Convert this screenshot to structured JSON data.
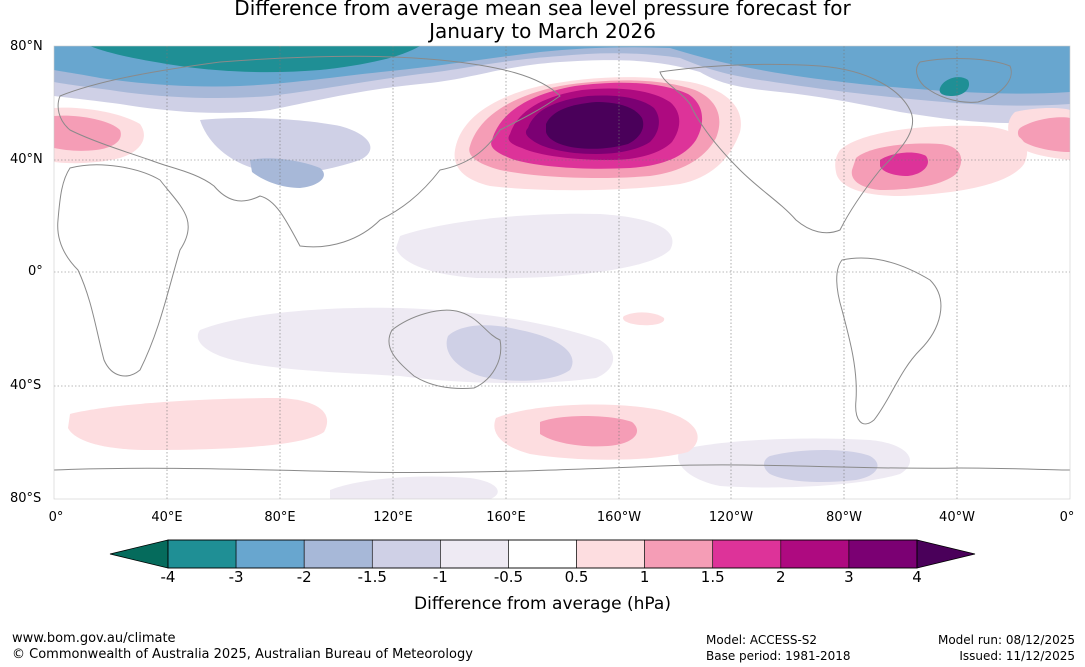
{
  "title_line1": "Difference from average mean sea level pressure forecast for",
  "title_line2": "January to March 2026",
  "map": {
    "lat_labels": [
      "80°N",
      "40°N",
      "0°",
      "40°S",
      "80°S"
    ],
    "lon_labels": [
      "0°",
      "40°E",
      "80°E",
      "120°E",
      "160°E",
      "160°W",
      "120°W",
      "80°W",
      "40°W",
      "0°"
    ]
  },
  "colorbar": {
    "ticks": [
      "-4",
      "-3",
      "-2",
      "-1.5",
      "-1",
      "-0.5",
      "0.5",
      "1",
      "1.5",
      "2",
      "3",
      "4"
    ],
    "colors": {
      "below_min": "#056b5c",
      "bins": [
        "#1f8f95",
        "#68a6cf",
        "#a7b8d8",
        "#cfd0e6",
        "#eeeaf3",
        "#ffffff",
        "#fddde0",
        "#f59db6",
        "#dd3399",
        "#ae0a80",
        "#7b0073"
      ],
      "above_max": "#4a005a"
    },
    "label": "Difference from average (hPa)"
  },
  "footer": {
    "url": "www.bom.gov.au/climate",
    "copyright": "© Commonwealth of Australia 2025, Australian Bureau of Meteorology",
    "model": "Model: ACCESS-S2",
    "base_period": "Base period: 1981-2018",
    "model_run": "Model run: 08/12/2025",
    "issued": "Issued: 11/12/2025"
  }
}
